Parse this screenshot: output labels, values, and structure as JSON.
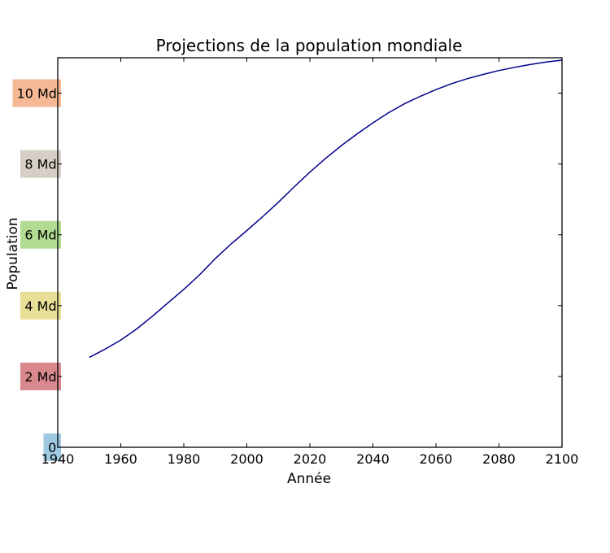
{
  "chart_data": {
    "type": "line",
    "title": "Projections de la population mondiale",
    "xlabel": "Année",
    "ylabel": "Population",
    "xlim": [
      1940,
      2100
    ],
    "ylim": [
      0,
      11.0
    ],
    "x_ticks": [
      1940,
      1960,
      1980,
      2000,
      2020,
      2040,
      2060,
      2080,
      2100
    ],
    "x_tick_labels": [
      "1940",
      "1960",
      "1980",
      "2000",
      "2020",
      "2040",
      "2060",
      "2080",
      "2100"
    ],
    "y_ticks": [
      0,
      2,
      4,
      6,
      8,
      10
    ],
    "y_tick_labels": [
      "0",
      "2 Md",
      "4 Md",
      "6 Md",
      "8 Md",
      "10 Md"
    ],
    "y_tick_label_colors": [
      "#9ecae1",
      "#d9898d",
      "#e8df97",
      "#b2db93",
      "#d6cfc5",
      "#f4b894"
    ],
    "grid": false,
    "series": [
      {
        "color": "#00008b",
        "x": [
          1950,
          1955,
          1960,
          1965,
          1970,
          1975,
          1980,
          1985,
          1990,
          1995,
          2000,
          2005,
          2010,
          2015,
          2020,
          2025,
          2030,
          2035,
          2040,
          2045,
          2050,
          2055,
          2060,
          2065,
          2070,
          2075,
          2080,
          2085,
          2090,
          2095,
          2100
        ],
        "y": [
          2.54,
          2.77,
          3.03,
          3.34,
          3.7,
          4.08,
          4.46,
          4.87,
          5.33,
          5.74,
          6.12,
          6.51,
          6.92,
          7.35,
          7.77,
          8.16,
          8.52,
          8.85,
          9.16,
          9.45,
          9.7,
          9.91,
          10.1,
          10.27,
          10.41,
          10.53,
          10.64,
          10.73,
          10.81,
          10.88,
          10.93
        ]
      }
    ]
  }
}
